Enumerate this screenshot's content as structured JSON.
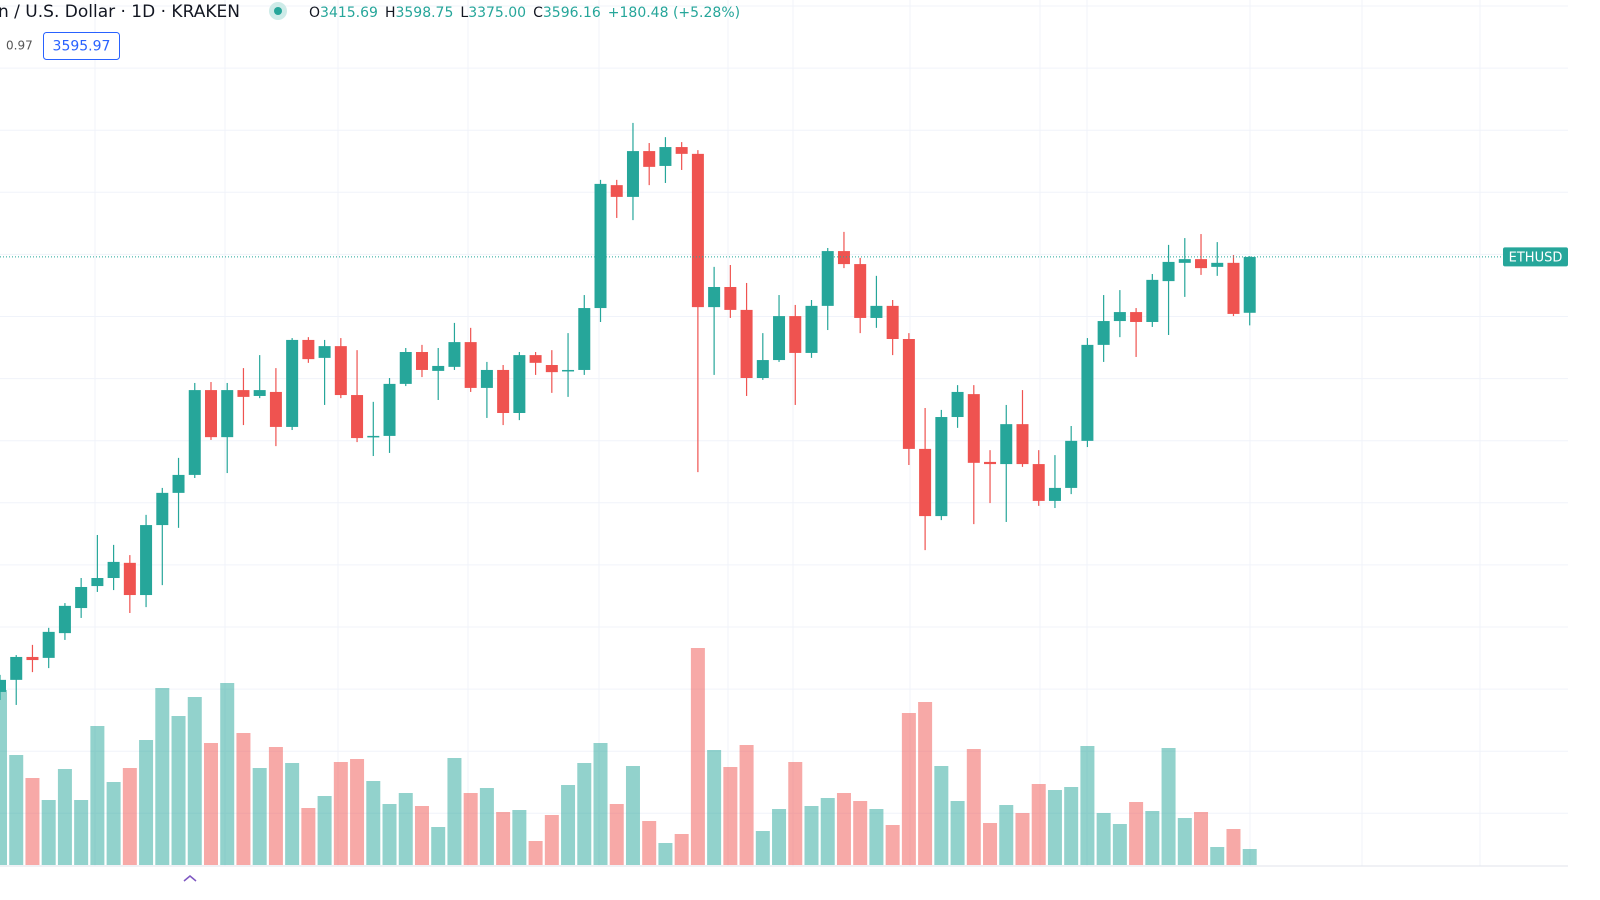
{
  "header": {
    "symbol": "n / U.S. Dollar · 1D · KRAKEN",
    "ohlc": [
      {
        "label": "O",
        "value": "3415.69"
      },
      {
        "label": "H",
        "value": "3598.75"
      },
      {
        "label": "L",
        "value": "3375.00"
      },
      {
        "label": "C",
        "value": "3596.16"
      }
    ],
    "change": "+180.48 (+5.28%)",
    "indicator": "0.97",
    "price_box": "3595.97",
    "ticker": "ETHUSD"
  },
  "chart_data": {
    "type": "candlestick",
    "up_color": "#26a69a",
    "down_color": "#ef5350",
    "ylim": [
      1632,
      4426
    ],
    "volume_lim": [
      0,
      865
    ],
    "last_price": 3596.16,
    "open": [
      2191,
      2230,
      2304,
      2301,
      2381,
      2462,
      2533,
      2559,
      2608,
      2504,
      2730,
      2834,
      2892,
      3166,
      3014,
      3166,
      3147,
      3160,
      3047,
      3328,
      3270,
      3308,
      3150,
      3014,
      3018,
      3186,
      3289,
      3228,
      3241,
      3321,
      3173,
      3231,
      3092,
      3279,
      3247,
      3228,
      3231,
      3431,
      3828,
      3790,
      3938,
      3890,
      3951,
      3929,
      3434,
      3499,
      3425,
      3205,
      3263,
      3405,
      3286,
      3438,
      3615,
      3573,
      3399,
      3438,
      3331,
      2976,
      2759,
      3079,
      3153,
      2934,
      2927,
      3056,
      2927,
      2808,
      2850,
      3002,
      3312,
      3389,
      3418,
      3386,
      3518,
      3577,
      3589,
      3564,
      3577,
      3415.69
    ],
    "high": [
      2246,
      2310,
      2343,
      2398,
      2478,
      2559,
      2698,
      2666,
      2633,
      2763,
      2850,
      2947,
      3189,
      3192,
      3189,
      3237,
      3279,
      3237,
      3334,
      3337,
      3328,
      3334,
      3295,
      3128,
      3205,
      3302,
      3312,
      3302,
      3383,
      3367,
      3257,
      3247,
      3289,
      3289,
      3295,
      3350,
      3473,
      3845,
      3845,
      4029,
      3964,
      3983,
      3967,
      3941,
      3564,
      3570,
      3512,
      3350,
      3473,
      3441,
      3457,
      3625,
      3677,
      3593,
      3535,
      3457,
      3350,
      3108,
      3102,
      3182,
      3182,
      2972,
      3118,
      3166,
      2972,
      2956,
      3050,
      3334,
      3473,
      3489,
      3431,
      3541,
      3635,
      3657,
      3670,
      3644,
      3602,
      3598.75
    ],
    "low": [
      2165,
      2149,
      2255,
      2268,
      2359,
      2430,
      2514,
      2520,
      2446,
      2465,
      2536,
      2721,
      2882,
      3005,
      2898,
      3053,
      3140,
      2985,
      3037,
      3254,
      3118,
      3140,
      2998,
      2953,
      2963,
      3179,
      3208,
      3134,
      3231,
      3160,
      3076,
      3053,
      3069,
      3215,
      3157,
      3144,
      3215,
      3386,
      3722,
      3715,
      3828,
      3835,
      3877,
      2901,
      3215,
      3399,
      3147,
      3199,
      3257,
      3118,
      3270,
      3360,
      3560,
      3350,
      3367,
      3279,
      2924,
      2649,
      2746,
      3044,
      2733,
      2801,
      2740,
      2918,
      2792,
      2785,
      2830,
      2982,
      3257,
      3337,
      3273,
      3370,
      3344,
      3467,
      3538,
      3535,
      3405,
      3375.0
    ],
    "close": [
      2230,
      2304,
      2294,
      2385,
      2469,
      2530,
      2559,
      2611,
      2504,
      2730,
      2834,
      2892,
      3166,
      3014,
      3166,
      3144,
      3166,
      3047,
      3328,
      3266,
      3308,
      3150,
      3011,
      3018,
      3186,
      3289,
      3231,
      3244,
      3321,
      3173,
      3231,
      3092,
      3279,
      3254,
      3224,
      3231,
      3431,
      3832,
      3790,
      3938,
      3887,
      3951,
      3929,
      3434,
      3499,
      3425,
      3205,
      3263,
      3405,
      3286,
      3438,
      3615,
      3573,
      3399,
      3438,
      3331,
      2976,
      2759,
      3079,
      3160,
      2931,
      2927,
      3056,
      2927,
      2808,
      2850,
      3002,
      3312,
      3389,
      3418,
      3386,
      3522,
      3580,
      3589,
      3560,
      3577,
      3412,
      3596.16
    ],
    "volume": [
      175,
      110,
      87,
      65,
      96,
      65,
      139,
      83,
      97,
      125,
      177,
      149,
      168,
      122,
      182,
      132,
      97,
      118,
      102,
      57,
      69,
      103,
      106,
      84,
      61,
      72,
      59,
      38,
      107,
      72,
      77,
      53,
      55,
      24,
      50,
      80,
      102,
      122,
      61,
      99,
      44,
      22,
      31,
      217,
      115,
      98,
      120,
      34,
      56,
      103,
      59,
      67,
      72,
      64,
      56,
      40,
      152,
      163,
      99,
      64,
      116,
      42,
      60,
      52,
      81,
      75,
      78,
      119,
      52,
      41,
      63,
      54,
      117,
      47,
      53,
      18,
      36,
      16
    ]
  }
}
